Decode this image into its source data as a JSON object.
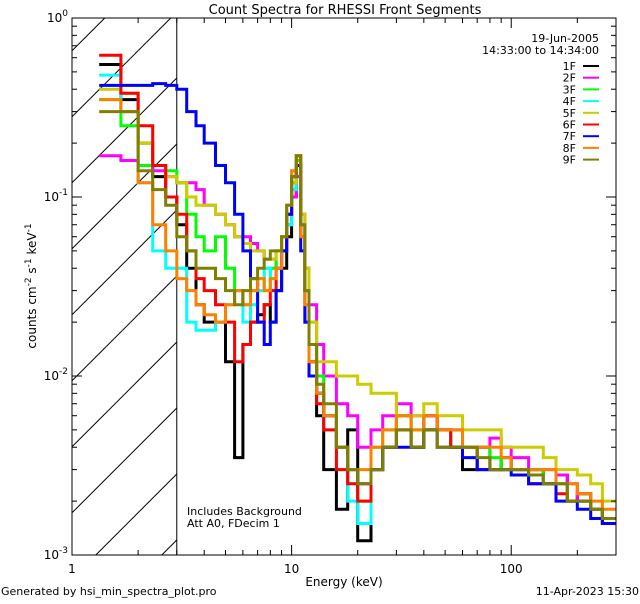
{
  "chart_data": {
    "type": "line",
    "title": "Count Spectra for RHESSI Front Segments",
    "xlabel": "Energy (keV)",
    "ylabel": "counts cm-2 s-1 keV-1",
    "xscale": "log",
    "yscale": "log",
    "xlim": [
      1,
      300
    ],
    "ylim": [
      0.001,
      1
    ],
    "x_ticks": [
      {
        "v": 1,
        "label": "1"
      },
      {
        "v": 10,
        "label": "10"
      },
      {
        "v": 100,
        "label": "100"
      }
    ],
    "y_ticks": [
      {
        "v": 1,
        "base": "10",
        "exp": "0"
      },
      {
        "v": 0.1,
        "base": "10",
        "exp": "-1"
      },
      {
        "v": 0.01,
        "base": "10",
        "exp": "-2"
      },
      {
        "v": 0.001,
        "base": "10",
        "exp": "-3"
      }
    ],
    "hatched_region_keV": [
      1,
      3
    ],
    "date": "19-Jun-2005",
    "time_range": "14:33:00 to 14:34:00",
    "annotations": [
      "Includes Background",
      "Att A0, FDecim 1"
    ],
    "energy_edges": [
      1.33,
      1.67,
      2.0,
      2.33,
      2.67,
      3.0,
      3.33,
      3.67,
      4.0,
      4.5,
      5.0,
      5.5,
      6.0,
      6.5,
      7.0,
      7.5,
      8.0,
      8.5,
      9.0,
      9.5,
      10,
      10.5,
      11,
      11.5,
      12,
      13,
      14,
      16,
      18,
      20,
      23,
      26,
      30,
      35,
      40,
      46,
      53,
      60,
      70,
      80,
      90,
      100,
      120,
      140,
      160,
      180,
      200,
      230,
      260,
      300
    ],
    "series": [
      {
        "name": "1F",
        "color": "#000000",
        "values": [
          0.55,
          0.35,
          0.2,
          0.13,
          0.1,
          0.07,
          0.04,
          0.025,
          0.02,
          0.02,
          0.012,
          0.0035,
          0.015,
          0.02,
          0.022,
          0.025,
          0.02,
          0.03,
          0.04,
          0.06,
          0.1,
          0.15,
          0.07,
          0.03,
          0.012,
          0.006,
          0.003,
          0.0018,
          0.005,
          0.0012,
          0.003,
          0.004,
          0.006,
          0.004,
          0.006,
          0.005,
          0.004,
          0.003,
          0.004,
          0.003,
          0.0035,
          0.003,
          0.003,
          0.0025,
          0.0028,
          0.002,
          0.0022,
          0.0018,
          0.0015
        ]
      },
      {
        "name": "2F",
        "color": "#ff00ff",
        "values": [
          0.17,
          0.16,
          0.15,
          0.14,
          0.13,
          0.12,
          0.12,
          0.11,
          0.09,
          0.08,
          0.07,
          0.06,
          0.06,
          0.055,
          0.05,
          0.045,
          0.045,
          0.04,
          0.05,
          0.07,
          0.1,
          0.13,
          0.08,
          0.04,
          0.025,
          0.015,
          0.01,
          0.007,
          0.006,
          0.004,
          0.005,
          0.006,
          0.007,
          0.006,
          0.006,
          0.005,
          0.005,
          0.004,
          0.004,
          0.0045,
          0.004,
          0.0035,
          0.003,
          0.003,
          0.0028,
          0.0025,
          0.002,
          0.0018,
          0.0016
        ]
      },
      {
        "name": "3F",
        "color": "#00ff00",
        "values": [
          0.35,
          0.25,
          0.15,
          0.15,
          0.14,
          0.12,
          0.08,
          0.06,
          0.05,
          0.06,
          0.04,
          0.03,
          0.025,
          0.03,
          0.035,
          0.03,
          0.04,
          0.05,
          0.06,
          0.08,
          0.12,
          0.16,
          0.06,
          0.03,
          0.02,
          0.01,
          0.006,
          0.004,
          0.003,
          0.002,
          0.004,
          0.005,
          0.006,
          0.005,
          0.005,
          0.005,
          0.004,
          0.004,
          0.004,
          0.0035,
          0.003,
          0.003,
          0.003,
          0.0025,
          0.0025,
          0.002,
          0.002,
          0.0018,
          0.0015
        ]
      },
      {
        "name": "4F",
        "color": "#00ffff",
        "values": [
          0.48,
          0.3,
          0.12,
          0.05,
          0.04,
          0.04,
          0.02,
          0.018,
          0.018,
          0.02,
          0.025,
          0.03,
          0.02,
          0.025,
          0.03,
          0.04,
          0.03,
          0.04,
          0.05,
          0.07,
          0.11,
          0.15,
          0.07,
          0.03,
          0.015,
          0.008,
          0.005,
          0.003,
          0.002,
          0.0015,
          0.003,
          0.004,
          0.005,
          0.004,
          0.005,
          0.005,
          0.004,
          0.004,
          0.003,
          0.003,
          0.003,
          0.003,
          0.0028,
          0.0025,
          0.0025,
          0.002,
          0.002,
          0.0018,
          0.0015
        ]
      },
      {
        "name": "5F",
        "color": "#cccc00",
        "values": [
          0.4,
          0.38,
          0.2,
          0.15,
          0.13,
          0.12,
          0.1,
          0.09,
          0.09,
          0.08,
          0.07,
          0.06,
          0.055,
          0.05,
          0.05,
          0.045,
          0.045,
          0.05,
          0.06,
          0.08,
          0.12,
          0.15,
          0.08,
          0.04,
          0.02,
          0.012,
          0.012,
          0.01,
          0.01,
          0.009,
          0.008,
          0.008,
          0.006,
          0.006,
          0.007,
          0.006,
          0.006,
          0.005,
          0.005,
          0.005,
          0.004,
          0.004,
          0.004,
          0.0035,
          0.003,
          0.003,
          0.0028,
          0.0025,
          0.002
        ]
      },
      {
        "name": "6F",
        "color": "#ff0000",
        "values": [
          0.62,
          0.38,
          0.25,
          0.15,
          0.1,
          0.08,
          0.05,
          0.035,
          0.03,
          0.025,
          0.02,
          0.012,
          0.015,
          0.02,
          0.02,
          0.025,
          0.03,
          0.04,
          0.05,
          0.08,
          0.13,
          0.17,
          0.06,
          0.02,
          0.012,
          0.007,
          0.005,
          0.003,
          0.0025,
          0.002,
          0.003,
          0.004,
          0.005,
          0.004,
          0.005,
          0.005,
          0.004,
          0.004,
          0.003,
          0.003,
          0.003,
          0.003,
          0.0025,
          0.0025,
          0.0022,
          0.002,
          0.002,
          0.0018,
          0.0015
        ]
      },
      {
        "name": "7F",
        "color": "#0000ff",
        "values": [
          0.42,
          0.42,
          0.42,
          0.43,
          0.42,
          0.4,
          0.3,
          0.25,
          0.2,
          0.15,
          0.12,
          0.08,
          0.05,
          0.035,
          0.02,
          0.015,
          0.02,
          0.03,
          0.05,
          0.08,
          0.13,
          0.15,
          0.05,
          0.02,
          0.01,
          0.008,
          0.006,
          0.004,
          0.003,
          0.0025,
          0.003,
          0.004,
          0.004,
          0.004,
          0.005,
          0.004,
          0.004,
          0.0035,
          0.003,
          0.003,
          0.003,
          0.0028,
          0.0025,
          0.0025,
          0.002,
          0.002,
          0.0018,
          0.0016,
          0.0015
        ]
      },
      {
        "name": "8F",
        "color": "#ff8000",
        "values": [
          0.35,
          0.3,
          0.12,
          0.07,
          0.05,
          0.035,
          0.03,
          0.025,
          0.022,
          0.02,
          0.025,
          0.03,
          0.025,
          0.03,
          0.035,
          0.03,
          0.035,
          0.04,
          0.06,
          0.09,
          0.14,
          0.17,
          0.06,
          0.025,
          0.012,
          0.008,
          0.006,
          0.004,
          0.003,
          0.003,
          0.004,
          0.005,
          0.006,
          0.005,
          0.006,
          0.005,
          0.005,
          0.004,
          0.004,
          0.004,
          0.0035,
          0.003,
          0.003,
          0.003,
          0.0025,
          0.0025,
          0.0022,
          0.002,
          0.0018
        ]
      },
      {
        "name": "9F",
        "color": "#808000",
        "values": [
          0.3,
          0.3,
          0.14,
          0.11,
          0.09,
          0.06,
          0.05,
          0.04,
          0.04,
          0.035,
          0.03,
          0.025,
          0.03,
          0.035,
          0.04,
          0.045,
          0.05,
          0.05,
          0.06,
          0.09,
          0.13,
          0.17,
          0.07,
          0.03,
          0.015,
          0.009,
          0.007,
          0.004,
          0.003,
          0.0025,
          0.003,
          0.004,
          0.005,
          0.004,
          0.005,
          0.004,
          0.004,
          0.004,
          0.0035,
          0.003,
          0.003,
          0.003,
          0.0028,
          0.0025,
          0.0025,
          0.002,
          0.002,
          0.0018,
          0.0016
        ]
      }
    ]
  },
  "footer": {
    "generated_by": "Generated by hsi_min_spectra_plot.pro",
    "timestamp": "11-Apr-2023 15:30"
  }
}
